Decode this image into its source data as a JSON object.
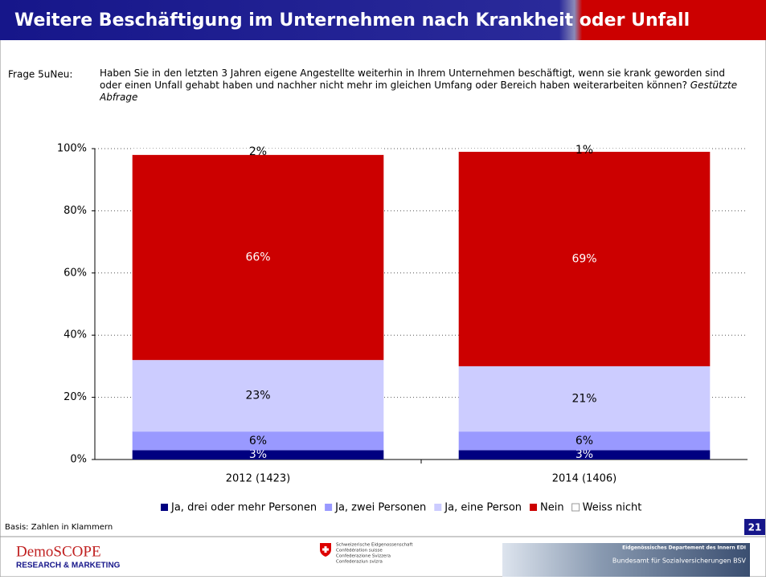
{
  "header": {
    "title": "Weitere Beschäftigung im Unternehmen nach Krankheit oder Unfall"
  },
  "question": {
    "label": "Frage 5uNeu:",
    "text": "Haben Sie in den letzten 3 Jahren eigene Angestellte weiterhin in Ihrem Unternehmen beschäftigt, wenn sie krank geworden sind oder einen Unfall gehabt haben und nachher nicht mehr im gleichen Umfang oder Bereich haben weiterarbeiten können?",
    "note": "Gestützte Abfrage"
  },
  "chart_data": {
    "type": "stacked_bar",
    "categories": [
      "2012 (1423)",
      "2014 (1406)"
    ],
    "series": [
      {
        "name": "Ja, drei oder mehr Personen",
        "color": "#000080",
        "values": [
          3,
          3
        ],
        "value_labels": [
          "3%",
          "3%"
        ]
      },
      {
        "name": "Ja, zwei Personen",
        "color": "#9999ff",
        "values": [
          6,
          6
        ],
        "value_labels": [
          "6%",
          "6%"
        ]
      },
      {
        "name": "Ja, eine Person",
        "color": "#ccccff",
        "values": [
          23,
          21
        ],
        "value_labels": [
          "23%",
          "21%"
        ]
      },
      {
        "name": "Nein",
        "color": "#cc0000",
        "values": [
          66,
          69
        ],
        "value_labels": [
          "66%",
          "69%"
        ]
      },
      {
        "name": "Weiss nicht",
        "color": "#ffffff",
        "values": [
          2,
          1
        ],
        "value_labels": [
          "2%",
          "1%"
        ]
      }
    ],
    "ylim": [
      0,
      100
    ],
    "yticks": [
      {
        "value": 0,
        "label": "0%"
      },
      {
        "value": 20,
        "label": "20%"
      },
      {
        "value": 40,
        "label": "40%"
      },
      {
        "value": 60,
        "label": "60%"
      },
      {
        "value": 80,
        "label": "80%"
      },
      {
        "value": 100,
        "label": "100%"
      }
    ],
    "grid": true,
    "legend": "bottom"
  },
  "footer": {
    "basis": "Basis: Zahlen in Klammern",
    "page": "21",
    "logo": {
      "name": "DemoSCOPE",
      "tagline": "RESEARCH & MARKETING"
    },
    "confederation": [
      "Schweizerische Eidgenossenschaft",
      "Confédération suisse",
      "Confederazione Svizzera",
      "Confederaziun svizra"
    ],
    "banner": [
      "Eidgenössisches Departement des Innern EDI",
      "Bundesamt für Sozialversicherungen BSV"
    ]
  }
}
